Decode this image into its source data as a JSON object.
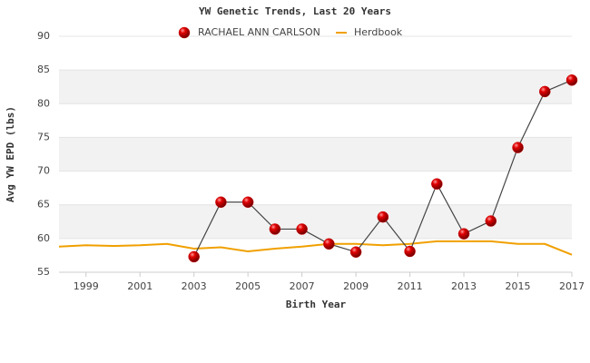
{
  "chart_data": {
    "type": "line",
    "title": "YW Genetic Trends, Last 20 Years",
    "x_label": "Birth Year",
    "y_label": "Avg YW EPD (lbs)",
    "x": [
      1998,
      1999,
      2000,
      2001,
      2002,
      2003,
      2004,
      2005,
      2006,
      2007,
      2008,
      2009,
      2010,
      2011,
      2012,
      2013,
      2014,
      2015,
      2016,
      2017
    ],
    "series": [
      {
        "name": "RACHAEL ANN CARLSON",
        "color": "#cc0000",
        "line_color": "#444444",
        "values": [
          null,
          null,
          null,
          null,
          null,
          57.3,
          65.4,
          65.4,
          61.4,
          61.4,
          59.2,
          58.0,
          63.2,
          58.1,
          68.1,
          60.7,
          62.6,
          73.5,
          81.8,
          83.5
        ]
      },
      {
        "name": "Herdbook",
        "color": "#f0a000",
        "values": [
          58.8,
          59.0,
          58.9,
          59.0,
          59.2,
          58.5,
          58.7,
          58.1,
          58.5,
          58.8,
          59.2,
          59.2,
          59.0,
          59.2,
          59.6,
          59.6,
          59.6,
          59.2,
          59.2,
          57.6
        ]
      }
    ],
    "xlim": [
      1998,
      2017
    ],
    "xticks": [
      1999,
      2001,
      2003,
      2005,
      2007,
      2009,
      2011,
      2013,
      2015,
      2017
    ],
    "ylim": [
      55,
      90
    ],
    "yticks": [
      55,
      60,
      65,
      70,
      75,
      80,
      85,
      90
    ],
    "grid": true
  }
}
